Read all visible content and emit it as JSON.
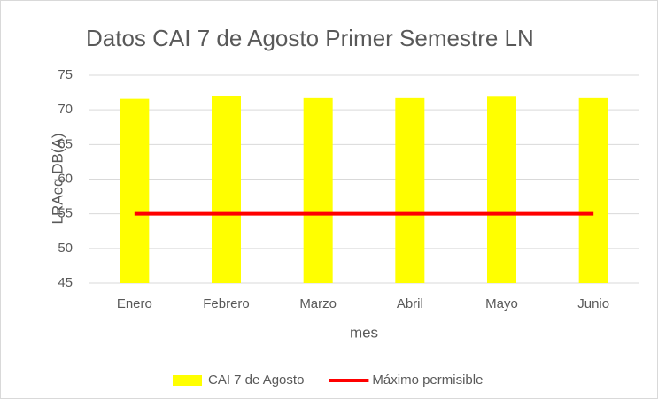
{
  "chart_data": {
    "type": "bar",
    "title": "Datos CAI 7 de Agosto Primer Semestre LN",
    "x_label": "mes",
    "y_label": "LRAeq DB(A)",
    "categories": [
      "Enero",
      "Febrero",
      "Marzo",
      "Abril",
      "Mayo",
      "Junio"
    ],
    "series": [
      {
        "name": "CAI 7 de Agosto",
        "type": "bar",
        "color": "#ffff00",
        "values": [
          71.6,
          72.0,
          71.7,
          71.7,
          71.9,
          71.7
        ]
      },
      {
        "name": "Máximo permisible",
        "type": "line",
        "color": "#ff0000",
        "values": [
          55,
          55,
          55,
          55,
          55,
          55
        ]
      }
    ],
    "ylim": [
      45,
      75
    ],
    "yticks": [
      45,
      50,
      55,
      60,
      65,
      70,
      75
    ],
    "grid": true,
    "legend": "bottom"
  }
}
